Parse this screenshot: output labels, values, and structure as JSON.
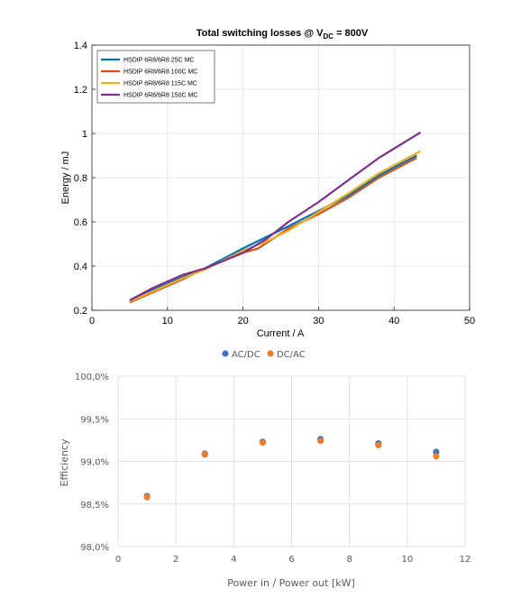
{
  "chart_data": [
    {
      "type": "line",
      "title": "Total switching losses @ V",
      "title_sub": "DC",
      "title_tail": " = 800V",
      "xlabel": "Current / A",
      "ylabel": "Energy / mJ",
      "xlim": [
        0,
        50
      ],
      "ylim": [
        0.2,
        1.4
      ],
      "xticks": [
        0,
        10,
        20,
        30,
        40,
        50
      ],
      "yticks": [
        0.2,
        0.4,
        0.6,
        0.8,
        1.0,
        1.2,
        1.4
      ],
      "ytick_labels": [
        "0.2",
        "0.4",
        "0.6",
        "0.8",
        "1",
        "1.2",
        "1.4"
      ],
      "grid": true,
      "legend_position": "top-left",
      "series": [
        {
          "name": "HSDIP 6R8/6R8 25C MC",
          "color": "#0072BD",
          "x": [
            5,
            8,
            12,
            15,
            20,
            23,
            26,
            30,
            34,
            38,
            43
          ],
          "y": [
            0.245,
            0.29,
            0.35,
            0.39,
            0.48,
            0.53,
            0.58,
            0.65,
            0.72,
            0.81,
            0.9
          ]
        },
        {
          "name": "HSDIP 6R8/6R8 100C MC",
          "color": "#D95319",
          "x": [
            5,
            8,
            12,
            15,
            20,
            22,
            26,
            30,
            34,
            38,
            43
          ],
          "y": [
            0.235,
            0.28,
            0.34,
            0.39,
            0.46,
            0.48,
            0.57,
            0.635,
            0.71,
            0.8,
            0.89
          ]
        },
        {
          "name": "HSDIP 6R8/6R8 115C MC",
          "color": "#EDB120",
          "x": [
            5,
            8,
            12,
            15,
            20,
            23,
            26,
            30,
            34,
            38,
            43.5
          ],
          "y": [
            0.24,
            0.285,
            0.345,
            0.385,
            0.47,
            0.51,
            0.56,
            0.645,
            0.73,
            0.82,
            0.92
          ]
        },
        {
          "name": "HSDIP 6R8/6R8 150C MC",
          "color": "#7E2F8E",
          "x": [
            5,
            8,
            12,
            15,
            20,
            23,
            26,
            30,
            34,
            38,
            43.5
          ],
          "y": [
            0.245,
            0.3,
            0.36,
            0.39,
            0.46,
            0.52,
            0.6,
            0.69,
            0.79,
            0.89,
            1.005
          ]
        }
      ]
    },
    {
      "type": "scatter",
      "title": "",
      "xlabel": "Power in / Power out [kW]",
      "ylabel": "Efficiency",
      "xlim": [
        0,
        12
      ],
      "ylim": [
        98.0,
        100.0
      ],
      "xticks": [
        0,
        2,
        4,
        6,
        8,
        10,
        12
      ],
      "yticks": [
        98.0,
        98.5,
        99.0,
        99.5,
        100.0
      ],
      "ytick_labels": [
        "98,0%",
        "98,5%",
        "99,0%",
        "99,5%",
        "100,0%"
      ],
      "grid": true,
      "legend_position": "top",
      "series": [
        {
          "name": "AC/DC",
          "color": "#4472C4",
          "x": [
            1,
            3,
            5,
            7,
            9,
            11
          ],
          "y": [
            98.59,
            99.09,
            99.23,
            99.26,
            99.21,
            99.11
          ]
        },
        {
          "name": "DC/AC",
          "color": "#ED7D31",
          "x": [
            1,
            3,
            5,
            7,
            9,
            11
          ],
          "y": [
            98.58,
            99.08,
            99.22,
            99.24,
            99.19,
            99.06
          ]
        }
      ]
    }
  ]
}
